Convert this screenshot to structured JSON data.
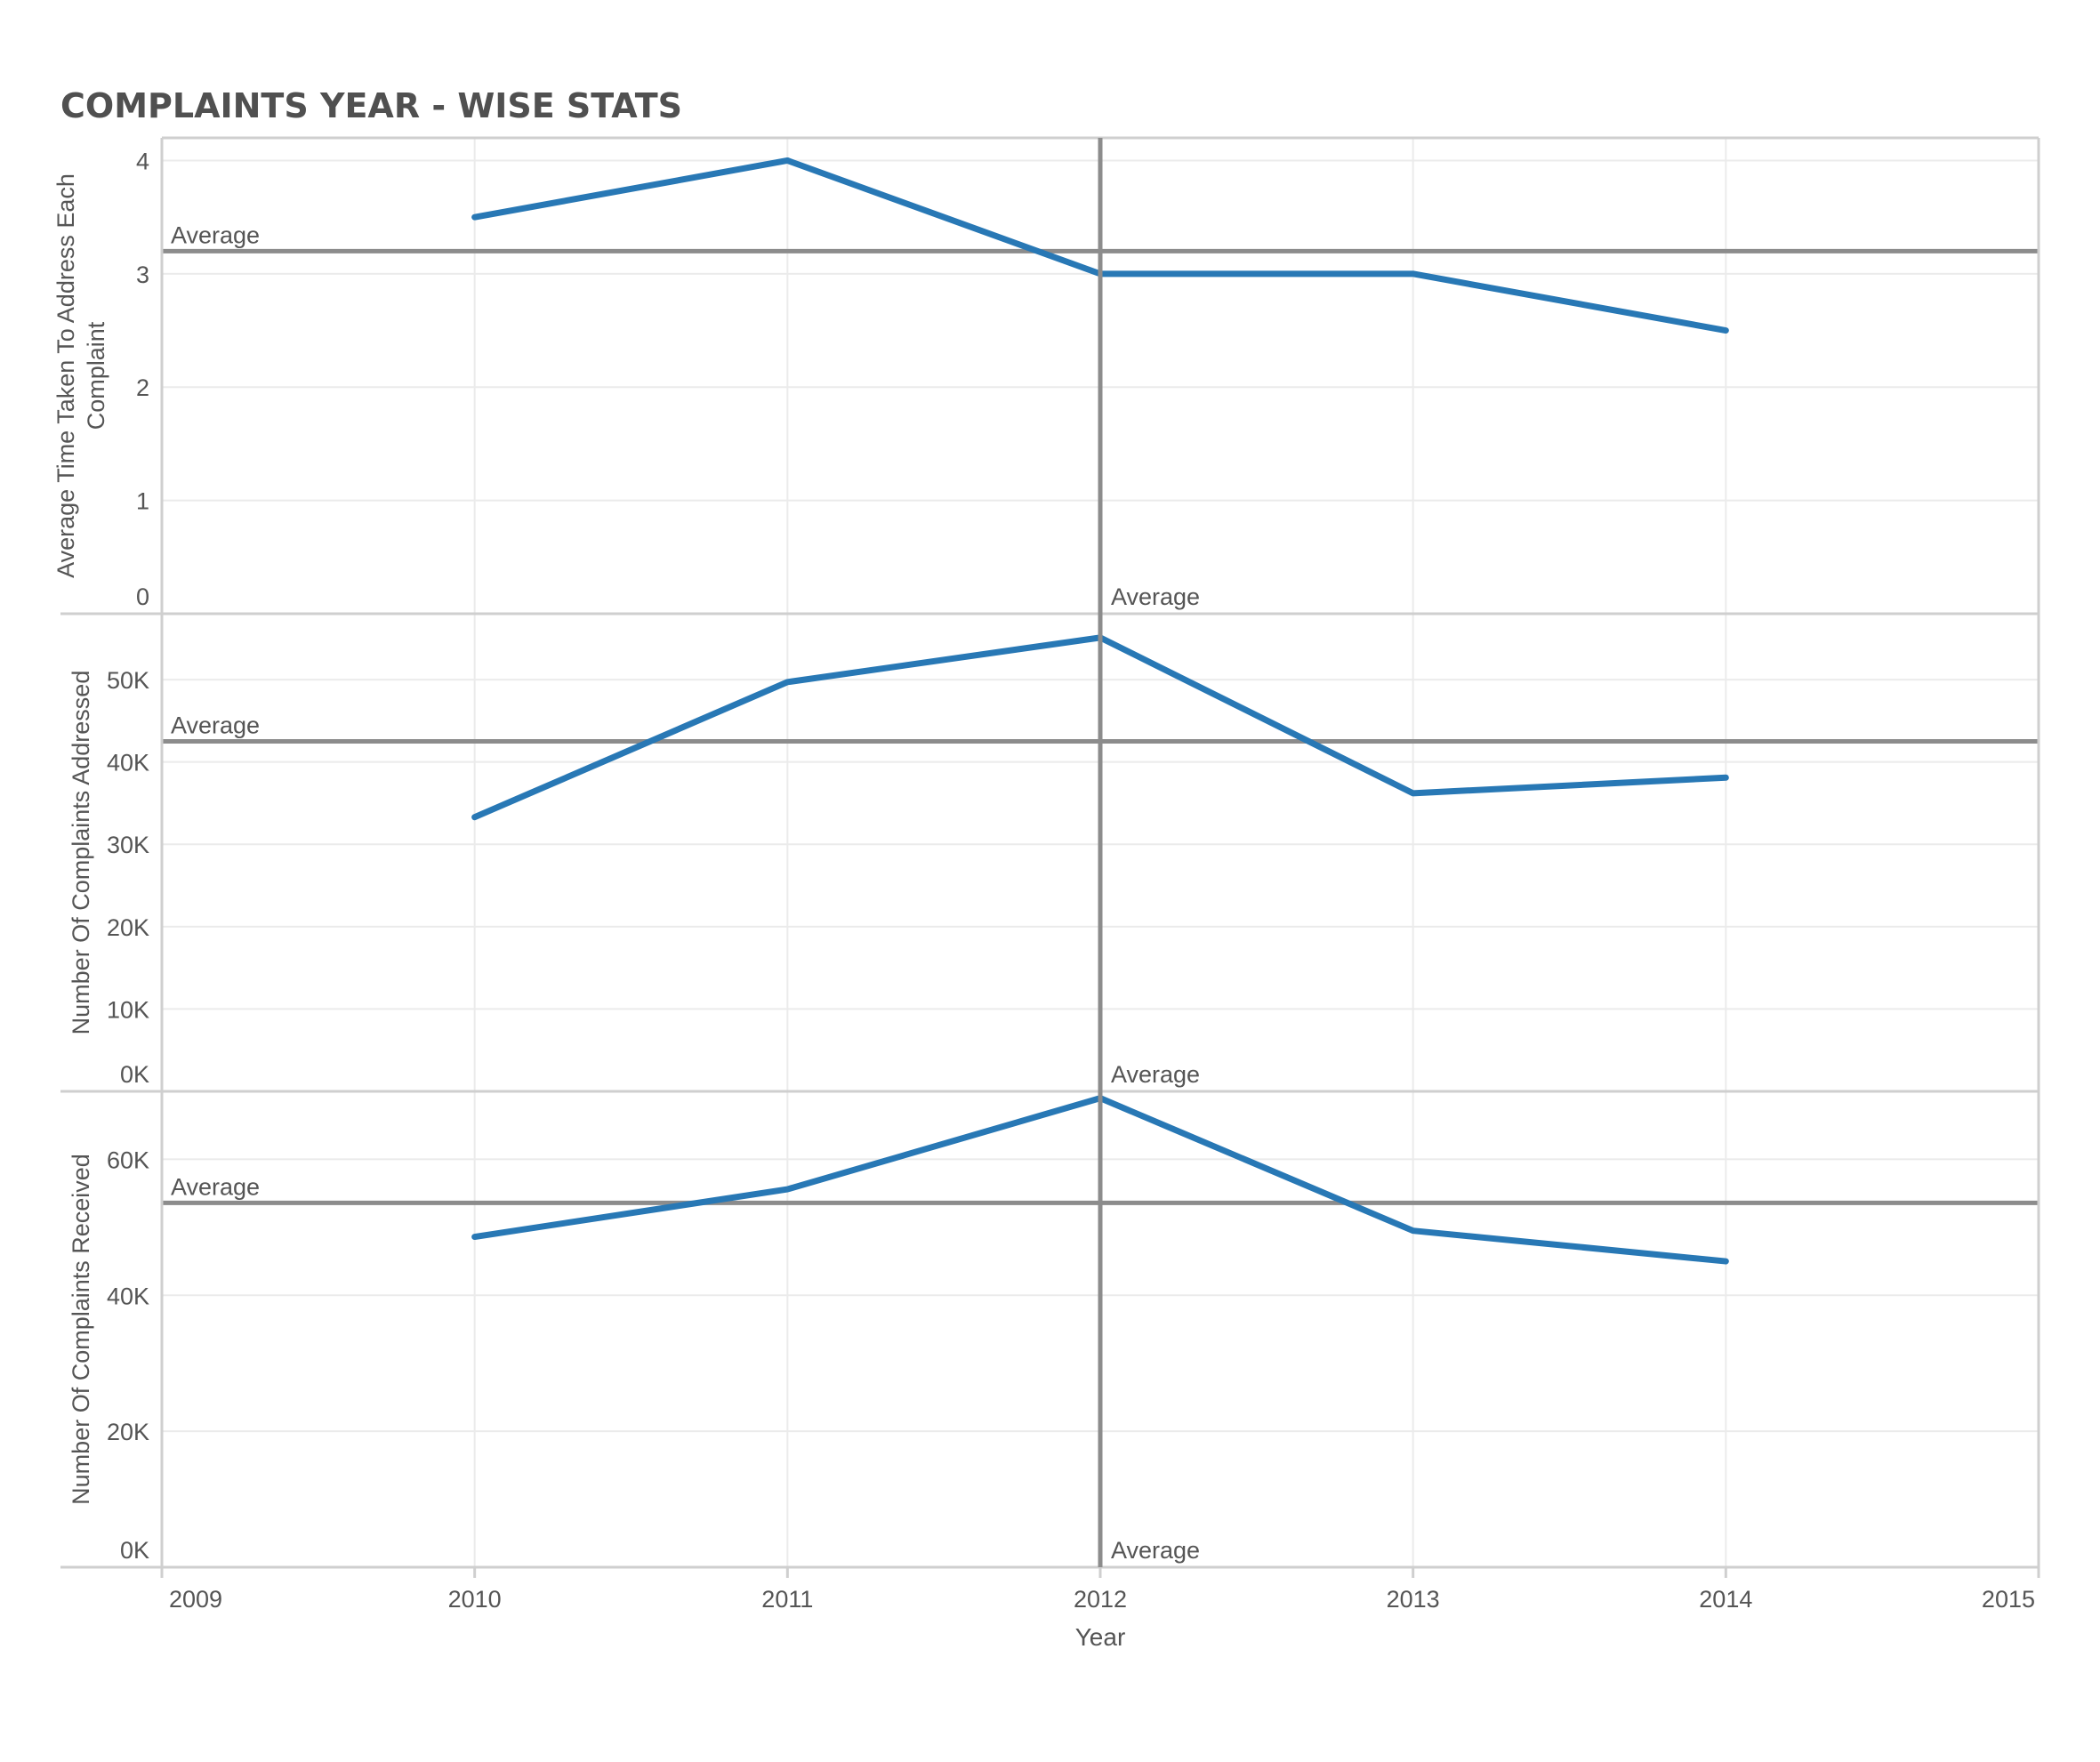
{
  "title": "COMPLAINTS  YEAR - WISE STATS",
  "colors": {
    "line": "#2878b5",
    "reference": "#8c8c8c",
    "grid": "#ebebeb",
    "frame": "#cfcfcf",
    "text": "#555555",
    "title": "#505050"
  },
  "chart_data": {
    "type": "line",
    "x_axis": {
      "label": "Year",
      "ticks": [
        "2009",
        "2010",
        "2011",
        "2012",
        "2013",
        "2014",
        "2015"
      ],
      "xlim": [
        2009,
        2015
      ]
    },
    "x": [
      2010,
      2011,
      2012,
      2013,
      2014
    ],
    "reference_lines": {
      "x_average": {
        "label": "Average",
        "value": 2012
      }
    },
    "grid": true,
    "panels": [
      {
        "ylabel_lines": [
          "Average Time Taken To Address Each",
          "Complaint"
        ],
        "ylim": [
          0,
          4.2
        ],
        "yticks": [
          0,
          1,
          2,
          3,
          4
        ],
        "ytick_labels": [
          "0",
          "1",
          "2",
          "3",
          "4"
        ],
        "values": [
          3.5,
          4.0,
          3.0,
          3.0,
          2.5
        ],
        "average": {
          "label": "Average",
          "value": 3.2
        }
      },
      {
        "ylabel_lines": [
          "Number Of Complaints Addressed"
        ],
        "ylim": [
          0,
          58000
        ],
        "yticks": [
          0,
          10000,
          20000,
          30000,
          40000,
          50000
        ],
        "ytick_labels": [
          "0K",
          "10K",
          "20K",
          "30K",
          "40K",
          "50K"
        ],
        "values": [
          33300,
          49700,
          55100,
          36200,
          38100
        ],
        "average": {
          "label": "Average",
          "value": 42500
        }
      },
      {
        "ylabel_lines": [
          "Number Of Complaints Received"
        ],
        "ylim": [
          0,
          70000
        ],
        "yticks": [
          0,
          20000,
          40000,
          60000
        ],
        "ytick_labels": [
          "0K",
          "20K",
          "40K",
          "60K"
        ],
        "values": [
          48600,
          55600,
          69000,
          49500,
          45000
        ],
        "average": {
          "label": "Average",
          "value": 53600
        }
      }
    ]
  }
}
